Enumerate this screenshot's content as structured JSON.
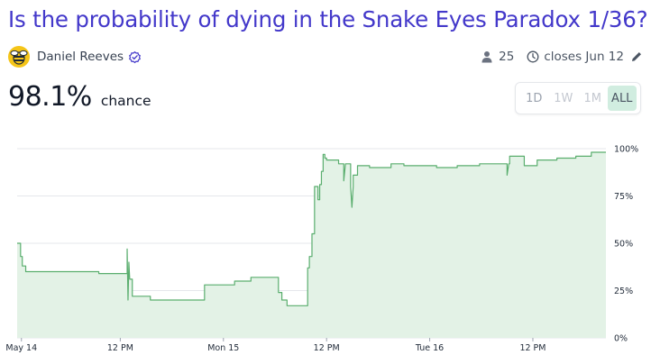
{
  "question": {
    "title": "Is the probability of dying in the Snake Eyes Paradox 1/36?"
  },
  "author": {
    "name": "Daniel Reeves",
    "avatar_icon": "bee-avatar-icon",
    "verified_icon": "verified-check-icon"
  },
  "meta": {
    "traders_count": "25",
    "closes_label": "closes Jun 12"
  },
  "probability": {
    "value": "98.1%",
    "suffix": "chance"
  },
  "time_range": {
    "options": [
      "1D",
      "1W",
      "1M",
      "ALL"
    ],
    "selected": "ALL"
  },
  "colors": {
    "title": "#4338ca",
    "line": "#5aae6e",
    "area": "#e3f2e6",
    "grid": "#e5e7eb",
    "range_active": "#d1ede0"
  },
  "chart_data": {
    "type": "area",
    "title": "",
    "xlabel": "",
    "ylabel": "",
    "ylim": [
      0,
      100
    ],
    "y_ticks": [
      "0%",
      "25%",
      "50%",
      "75%",
      "100%"
    ],
    "x_ticks": [
      {
        "label": "May 14",
        "t": 0.5
      },
      {
        "label": "12 PM",
        "t": 12
      },
      {
        "label": "Mon 15",
        "t": 24
      },
      {
        "label": "12 PM",
        "t": 36
      },
      {
        "label": "Tue 16",
        "t": 48
      },
      {
        "label": "12 PM",
        "t": 60
      }
    ],
    "x_unit": "hours since May 14 00:00",
    "xlim": [
      0,
      68.5
    ],
    "series": [
      {
        "name": "",
        "points": [
          [
            0.0,
            50
          ],
          [
            0.4,
            50
          ],
          [
            0.4,
            43
          ],
          [
            0.6,
            43
          ],
          [
            0.6,
            38
          ],
          [
            1.0,
            38
          ],
          [
            1.0,
            35
          ],
          [
            9.5,
            35
          ],
          [
            9.5,
            34
          ],
          [
            12.8,
            34
          ],
          [
            12.8,
            47
          ],
          [
            12.9,
            20
          ],
          [
            13.0,
            40
          ],
          [
            13.1,
            31
          ],
          [
            13.4,
            31
          ],
          [
            13.4,
            22
          ],
          [
            15.5,
            22
          ],
          [
            15.5,
            20
          ],
          [
            21.8,
            20
          ],
          [
            21.8,
            28
          ],
          [
            25.3,
            28
          ],
          [
            25.3,
            30
          ],
          [
            27.2,
            30
          ],
          [
            27.2,
            32
          ],
          [
            30.4,
            32
          ],
          [
            30.4,
            24
          ],
          [
            30.8,
            24
          ],
          [
            30.8,
            20
          ],
          [
            31.4,
            20
          ],
          [
            31.4,
            17
          ],
          [
            33.8,
            17
          ],
          [
            33.8,
            37
          ],
          [
            34.0,
            37
          ],
          [
            34.0,
            43
          ],
          [
            34.3,
            43
          ],
          [
            34.3,
            55
          ],
          [
            34.6,
            55
          ],
          [
            34.6,
            80
          ],
          [
            35.0,
            80
          ],
          [
            35.0,
            73
          ],
          [
            35.2,
            73
          ],
          [
            35.2,
            81
          ],
          [
            35.4,
            81
          ],
          [
            35.4,
            88
          ],
          [
            35.6,
            88
          ],
          [
            35.6,
            97
          ],
          [
            35.8,
            97
          ],
          [
            35.8,
            95
          ],
          [
            36.0,
            95
          ],
          [
            36.0,
            94
          ],
          [
            37.4,
            94
          ],
          [
            37.4,
            92
          ],
          [
            38.0,
            92
          ],
          [
            38.0,
            83
          ],
          [
            38.2,
            92
          ],
          [
            38.8,
            92
          ],
          [
            38.8,
            80
          ],
          [
            38.95,
            69
          ],
          [
            39.1,
            80
          ],
          [
            39.1,
            86
          ],
          [
            39.6,
            86
          ],
          [
            39.6,
            91
          ],
          [
            41.0,
            91
          ],
          [
            41.0,
            90
          ],
          [
            43.5,
            90
          ],
          [
            43.5,
            92
          ],
          [
            45.0,
            92
          ],
          [
            45.0,
            91
          ],
          [
            48.8,
            91
          ],
          [
            48.8,
            90
          ],
          [
            51.2,
            90
          ],
          [
            51.2,
            91
          ],
          [
            53.8,
            91
          ],
          [
            53.8,
            92
          ],
          [
            57.0,
            92
          ],
          [
            57.0,
            86
          ],
          [
            57.2,
            92
          ],
          [
            57.3,
            92
          ],
          [
            57.3,
            96
          ],
          [
            59.0,
            96
          ],
          [
            59.0,
            91
          ],
          [
            60.5,
            91
          ],
          [
            60.5,
            94
          ],
          [
            62.8,
            94
          ],
          [
            62.8,
            95
          ],
          [
            65.0,
            95
          ],
          [
            65.0,
            96
          ],
          [
            66.8,
            96
          ],
          [
            66.8,
            98.1
          ],
          [
            68.5,
            98.1
          ]
        ]
      }
    ]
  }
}
